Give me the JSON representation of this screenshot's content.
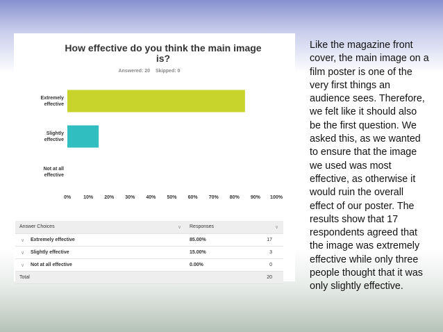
{
  "chart_data": {
    "type": "hbar",
    "title": "How effective do you think the main image is?",
    "subtitle": [
      "Answered: 20",
      "Skipped: 0"
    ],
    "categories": [
      "Extremely effective",
      "Slightly effective",
      "Not at all effective"
    ],
    "values": [
      85,
      15,
      0
    ],
    "colors": [
      "#c8d32b",
      "#30bec0",
      "#888888"
    ],
    "xlim": [
      0,
      100
    ],
    "xticks": [
      {
        "value": 0,
        "label": "0%"
      },
      {
        "value": 10,
        "label": "10%"
      },
      {
        "value": 20,
        "label": "20%"
      },
      {
        "value": 30,
        "label": "30%"
      },
      {
        "value": 40,
        "label": "40%"
      },
      {
        "value": 50,
        "label": "50%"
      },
      {
        "value": 60,
        "label": "60%"
      },
      {
        "value": 70,
        "label": "70%"
      },
      {
        "value": 80,
        "label": "80%"
      },
      {
        "value": 90,
        "label": "90%"
      },
      {
        "value": 100,
        "label": "100%"
      }
    ],
    "grid": false
  },
  "table": {
    "header": [
      "Answer Choices",
      "Responses"
    ],
    "rows": [
      [
        "Extremely effective",
        "85.00%",
        "17"
      ],
      [
        "Slightly effective",
        "15.00%",
        "3"
      ],
      [
        "Not at all effective",
        "0.00%",
        "0"
      ]
    ],
    "total": [
      "Total",
      "20"
    ]
  },
  "text": "Like the magazine front cover, the main image on a film poster is one of the very first things an audience sees. Therefore, we felt like it should also be the first question. We asked this, as we wanted to ensure that the image we used was most effective, as otherwise it would ruin the overall effect of our poster. The results show that 17 respondents agreed that the image was extremely effective while only three people thought that it was only slightly effective."
}
